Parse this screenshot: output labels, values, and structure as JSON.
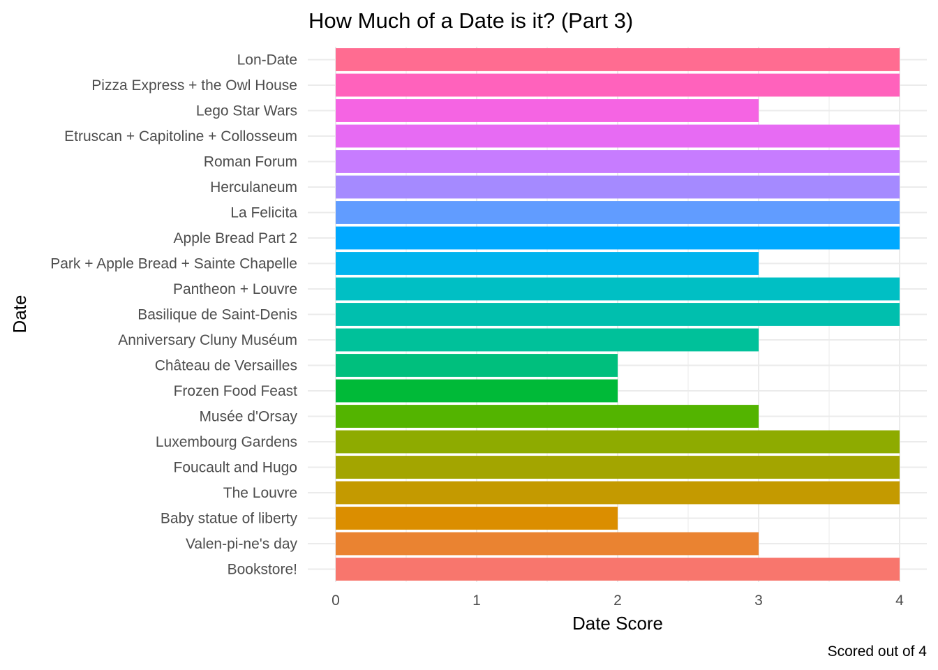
{
  "chart_data": {
    "type": "bar",
    "orientation": "horizontal",
    "title": "How Much of a Date is it? (Part 3)",
    "xlabel": "Date Score",
    "ylabel": "Date",
    "caption": "Scored out of 4",
    "xlim": [
      0,
      4
    ],
    "x_ticks": [
      "0",
      "1",
      "2",
      "3",
      "4"
    ],
    "grid": true,
    "legend": "none",
    "categories": [
      "Lon-Date",
      "Pizza Express + the Owl House",
      "Lego Star Wars",
      "Etruscan + Capitoline + Collosseum",
      "Roman Forum",
      "Herculaneum",
      "La Felicita",
      "Apple Bread Part 2",
      "Park + Apple Bread + Sainte Chapelle",
      "Pantheon + Louvre",
      "Basilique de Saint-Denis",
      "Anniversary Cluny Muséum",
      "Château de Versailles",
      "Frozen Food Feast",
      "Musée d'Orsay",
      "Luxembourg Gardens",
      "Foucault and Hugo",
      "The Louvre",
      "Baby statue of liberty",
      "Valen-pi-ne's day",
      "Bookstore!"
    ],
    "values": [
      4,
      4,
      3,
      4,
      4,
      4,
      4,
      4,
      3,
      4,
      4,
      3,
      2,
      2,
      3,
      4,
      4,
      4,
      2,
      3,
      4
    ],
    "colors": [
      "#FF6C91",
      "#FF62BC",
      "#F564E3",
      "#E76BF3",
      "#C77CFF",
      "#A58AFF",
      "#619CFF",
      "#00A9FF",
      "#00B4EF",
      "#00BFC4",
      "#00BFAE",
      "#00C19A",
      "#00BF7D",
      "#00BA38",
      "#53B400",
      "#8EAB00",
      "#A3A500",
      "#C49A00",
      "#DB8E00",
      "#EA8331",
      "#F8766D"
    ]
  }
}
